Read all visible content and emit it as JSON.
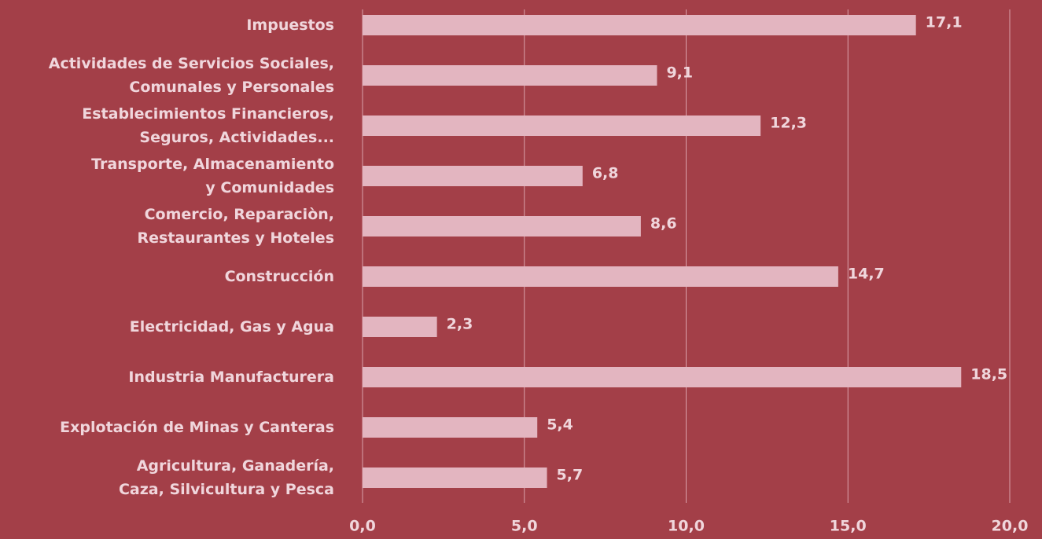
{
  "chart_data": {
    "type": "bar",
    "orientation": "horizontal",
    "categories": [
      "Impuestos",
      "Actividades de Servicios Sociales,\nComunales y Personales",
      "Establecimientos Financieros,\nSeguros, Actividades...",
      "Transporte, Almacenamiento\ny Comunidades",
      "Comercio, Reparaciòn,\nRestaurantes y Hoteles",
      "Construcción",
      "Electricidad, Gas y Agua",
      "Industria Manufacturera",
      "Explotación  de Minas y Canteras",
      "Agricultura, Ganadería,\nCaza, Silvicultura y Pesca"
    ],
    "values": [
      17.1,
      9.1,
      12.3,
      6.8,
      8.6,
      14.7,
      2.3,
      18.5,
      5.4,
      5.7
    ],
    "value_labels": [
      "17,1",
      "9,1",
      "12,3",
      "6,8",
      "8,6",
      "14,7",
      "2,3",
      "18,5",
      "5,4",
      "5,7"
    ],
    "color": "#e3b5c0",
    "xlim": [
      0,
      20
    ],
    "xticks": [
      {
        "value": 0,
        "label": "0,0"
      },
      {
        "value": 5,
        "label": "5,0"
      },
      {
        "value": 10,
        "label": "10,0"
      },
      {
        "value": 15,
        "label": "15,0"
      },
      {
        "value": 20,
        "label": "20,0"
      }
    ],
    "grid": true
  }
}
